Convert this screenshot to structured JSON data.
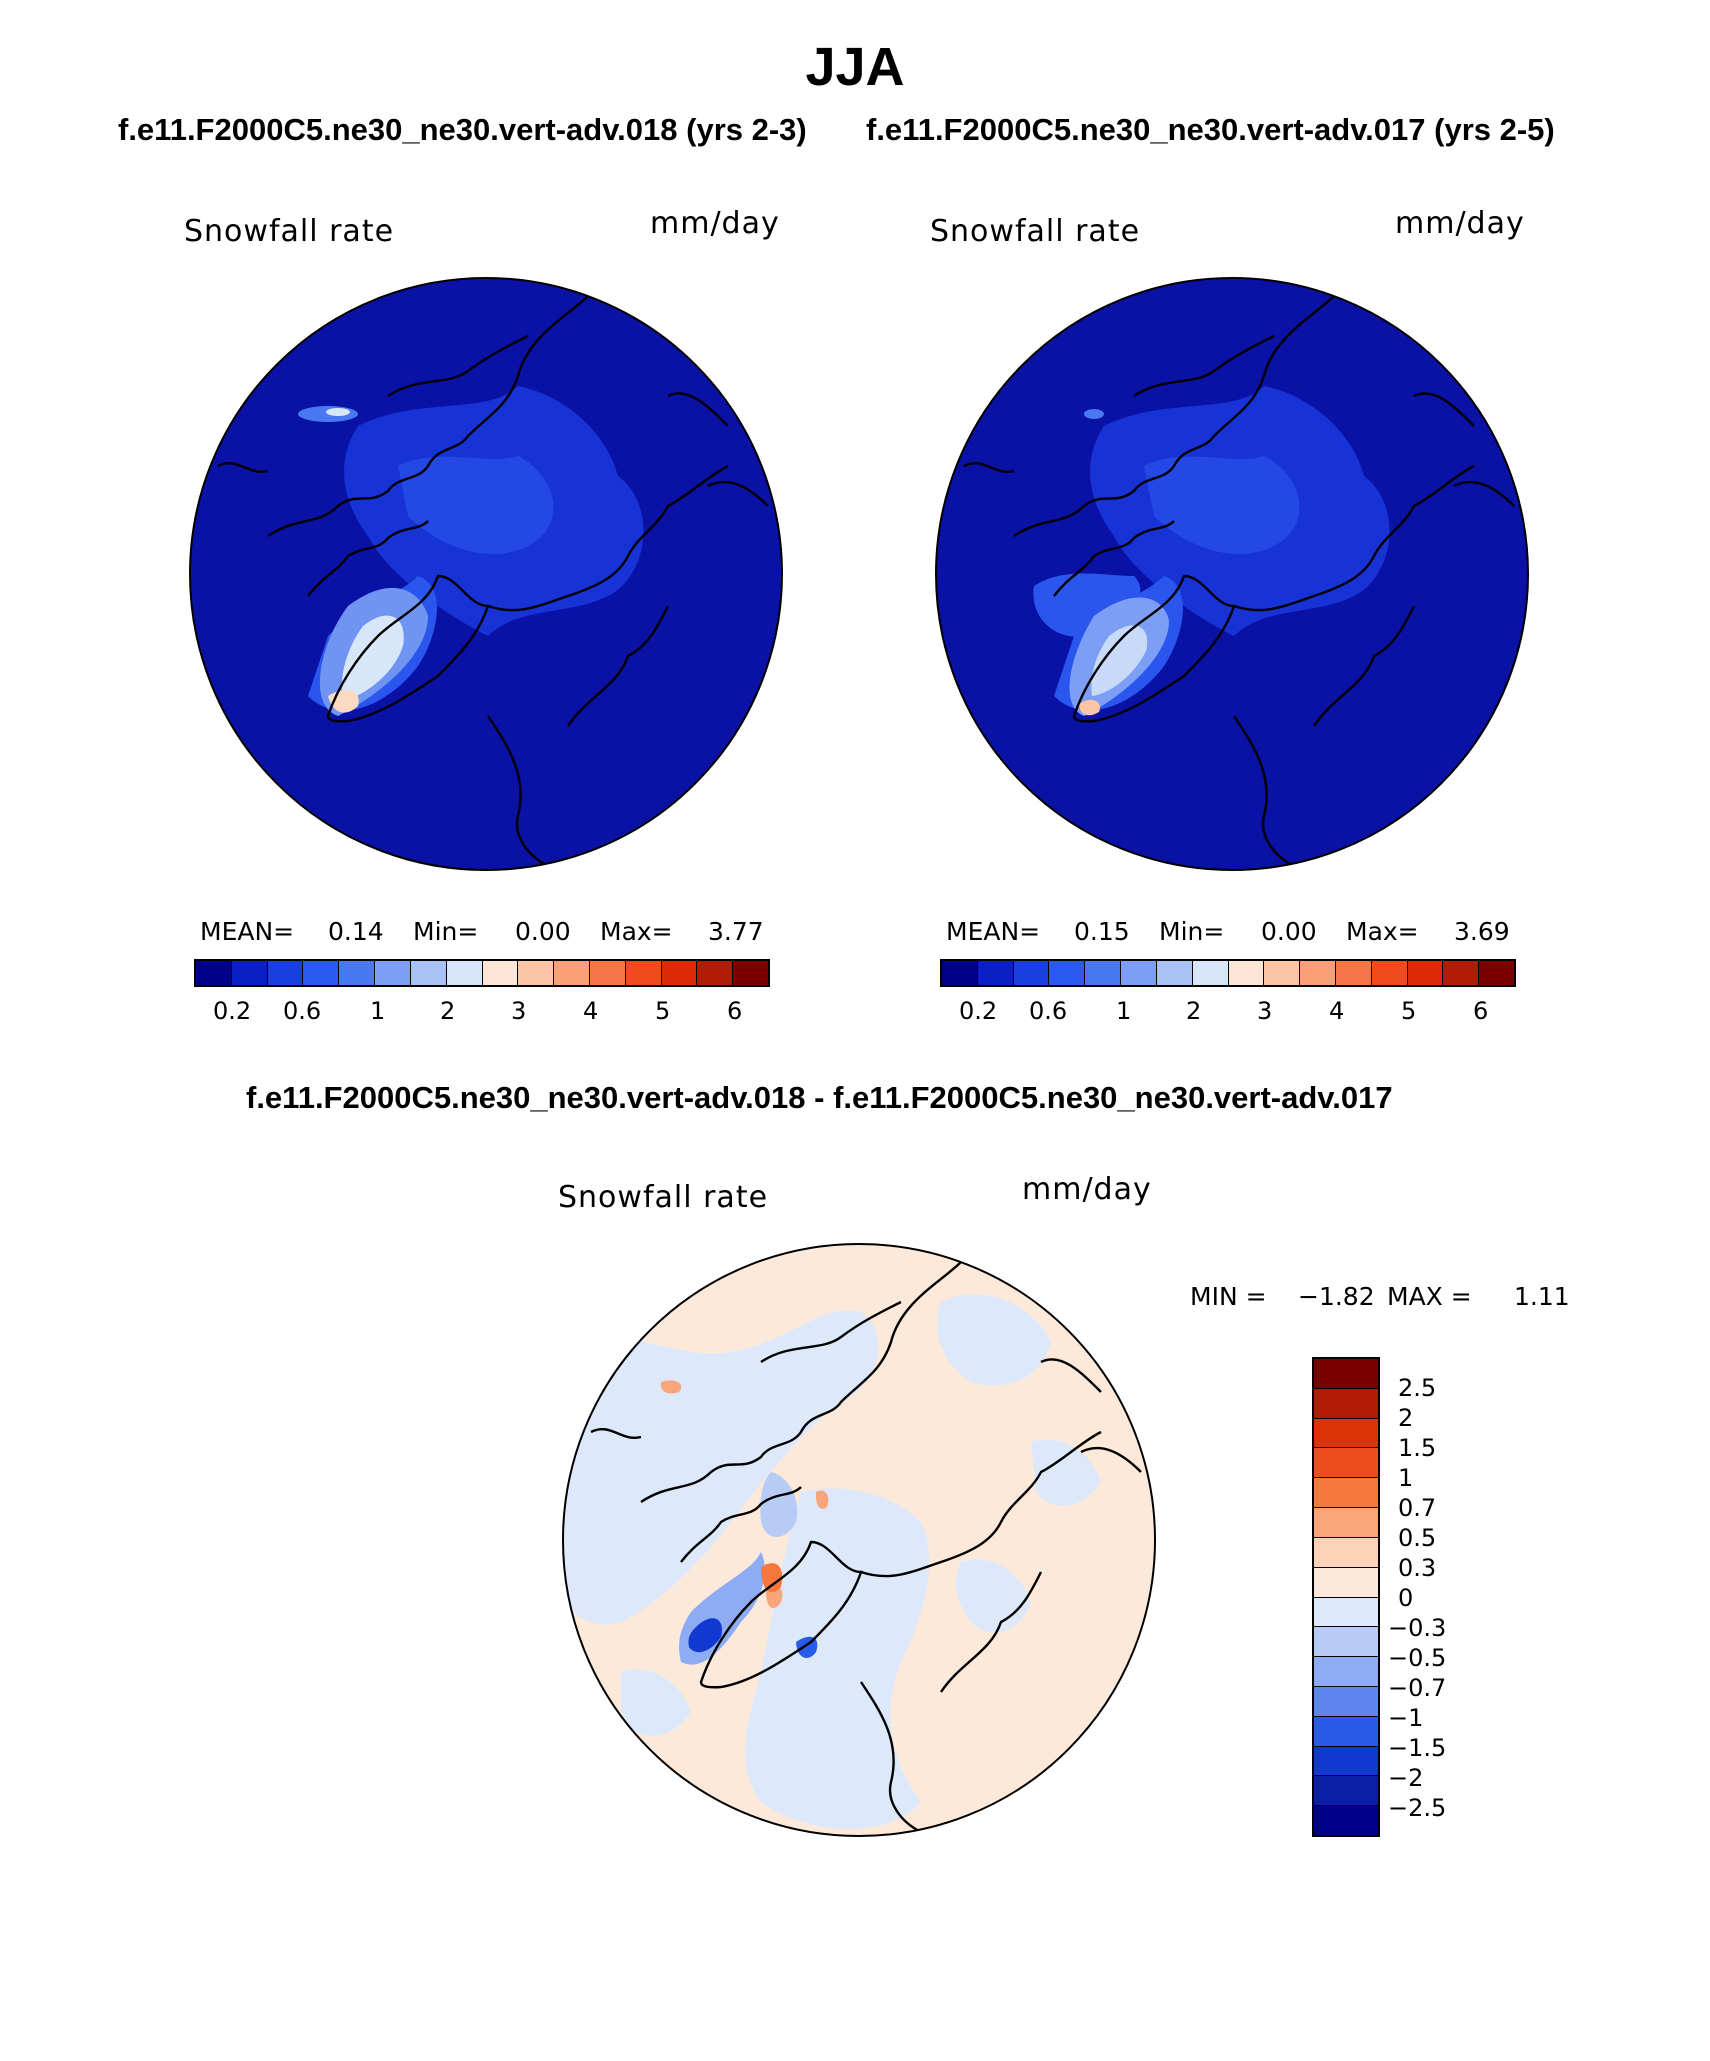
{
  "season": "JJA",
  "header": {
    "left_case": "f.e11.F2000C5.ne30_ne30.vert-adv.018 (yrs 2-3)",
    "right_case": "f.e11.F2000C5.ne30_ne30.vert-adv.017 (yrs 2-5)",
    "diff_title": "f.e11.F2000C5.ne30_ne30.vert-adv.018 - f.e11.F2000C5.ne30_ne30.vert-adv.017"
  },
  "panels": [
    {
      "variable": "Snowfall rate",
      "units": "mm/day",
      "mean_label": "MEAN=",
      "mean": "0.14",
      "min_label": "Min=",
      "min": "0.00",
      "max_label": "Max=",
      "max": "3.77"
    },
    {
      "variable": "Snowfall rate",
      "units": "mm/day",
      "mean_label": "MEAN=",
      "mean": "0.15",
      "min_label": "Min=",
      "min": "0.00",
      "max_label": "Max=",
      "max": "3.69"
    }
  ],
  "diff_panel": {
    "variable": "Snowfall rate",
    "units": "mm/day",
    "min_label": "MIN =",
    "min": "−1.82",
    "max_label": "MAX =",
    "max": "1.11"
  },
  "colorbar_abs": {
    "ticks": [
      "0.2",
      "0.6",
      "1",
      "2",
      "3",
      "4",
      "5",
      "6"
    ],
    "colors": [
      "#00008b",
      "#0a1fc4",
      "#1a3fe0",
      "#2a5af0",
      "#4a78f2",
      "#7c9ef4",
      "#a9c2f6",
      "#d8e6fa",
      "#fde6d6",
      "#fcc6a6",
      "#f9a079",
      "#f6764a",
      "#f04a1e",
      "#dc2a0a",
      "#b01c06",
      "#7a0000"
    ]
  },
  "colorbar_diff": {
    "ticks": [
      "2.5",
      "2",
      "1.5",
      "1",
      "0.7",
      "0.5",
      "0.3",
      "0",
      "−0.3",
      "−0.5",
      "−0.7",
      "−1",
      "−1.5",
      "−2",
      "−2.5"
    ],
    "colors": [
      "#7a0000",
      "#b01c06",
      "#dc3408",
      "#ef4d20",
      "#f7783f",
      "#f9a57c",
      "#fcd2b8",
      "#fde9d9",
      "#dde9fb",
      "#b6ccf7",
      "#8eacf4",
      "#5d86f0",
      "#2a5ae8",
      "#1138d0",
      "#0a1ea8",
      "#00008b"
    ]
  }
}
